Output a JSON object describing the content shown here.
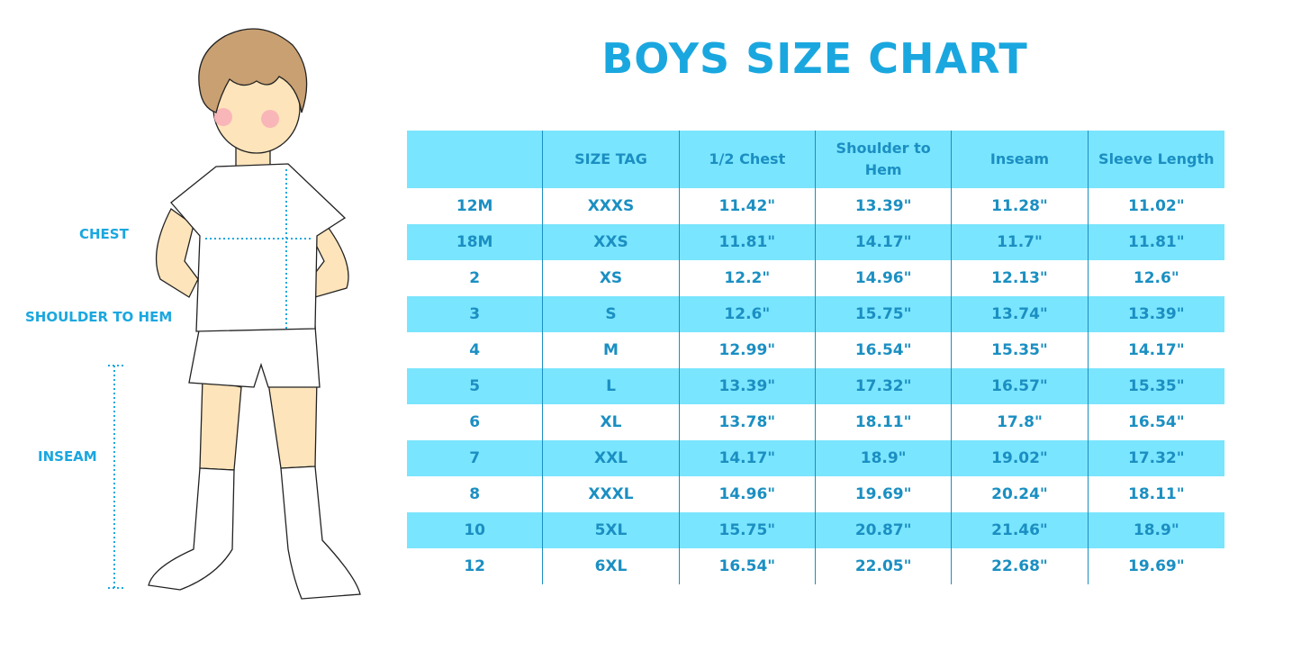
{
  "title": "BOYS SIZE CHART",
  "labels": {
    "chest": "CHEST",
    "shoulder_to_hem": "SHOULDER TO HEM",
    "inseam": "INSEAM"
  },
  "colors": {
    "accent": "#1aa7df",
    "stripe": "#7ae5fe",
    "text": "#1b8fc2"
  },
  "table": {
    "headers": [
      "",
      "SIZE TAG",
      "1/2 Chest",
      "Shoulder to Hem",
      "Inseam",
      "Sleeve Length"
    ],
    "rows": [
      [
        "12M",
        "XXXS",
        "11.42\"",
        "13.39\"",
        "11.28\"",
        "11.02\""
      ],
      [
        "18M",
        "XXS",
        "11.81\"",
        "14.17\"",
        "11.7\"",
        "11.81\""
      ],
      [
        "2",
        "XS",
        "12.2\"",
        "14.96\"",
        "12.13\"",
        "12.6\""
      ],
      [
        "3",
        "S",
        "12.6\"",
        "15.75\"",
        "13.74\"",
        "13.39\""
      ],
      [
        "4",
        "M",
        "12.99\"",
        "16.54\"",
        "15.35\"",
        "14.17\""
      ],
      [
        "5",
        "L",
        "13.39\"",
        "17.32\"",
        "16.57\"",
        "15.35\""
      ],
      [
        "6",
        "XL",
        "13.78\"",
        "18.11\"",
        "17.8\"",
        "16.54\""
      ],
      [
        "7",
        "XXL",
        "14.17\"",
        "18.9\"",
        "19.02\"",
        "17.32\""
      ],
      [
        "8",
        "XXXL",
        "14.96\"",
        "19.69\"",
        "20.24\"",
        "18.11\""
      ],
      [
        "10",
        "5XL",
        "15.75\"",
        "20.87\"",
        "21.46\"",
        "18.9\""
      ],
      [
        "12",
        "6XL",
        "16.54\"",
        "22.05\"",
        "22.68\"",
        "19.69\""
      ]
    ]
  }
}
